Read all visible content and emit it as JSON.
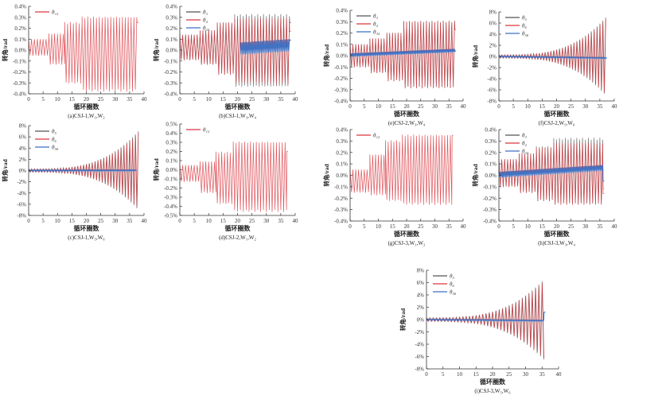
{
  "colors": {
    "black": "#555555",
    "red": "#d9363e",
    "blue": "#3a6fc4",
    "axis": "#333333"
  },
  "chart_data": [
    {
      "id": "a",
      "type": "line",
      "caption": "(a)CSJ-1,W₁,W₂",
      "xlabel": "循环圈数",
      "ylabel": "转角/rad",
      "xlim": [
        0,
        40
      ],
      "ylim": [
        -0.4,
        0.4
      ],
      "xticks": [
        "0",
        "5",
        "10",
        "15",
        "20",
        "25",
        "30",
        "35",
        "40"
      ],
      "yticks": [
        "-0.4%",
        "-0.3%",
        "-0.2%",
        "-0.1%",
        "0.0%",
        "0.1%",
        "0.2%",
        "0.3%",
        "0.4%"
      ],
      "series": [
        {
          "name": "θ₁₂",
          "color": "red",
          "stages": [
            [
              0,
              7,
              0.1,
              -0.05
            ],
            [
              7,
              12.5,
              0.15,
              -0.13
            ],
            [
              12.5,
              18.5,
              0.25,
              -0.3
            ],
            [
              18.5,
              37.5,
              0.3,
              -0.37
            ]
          ],
          "end": 0.25
        }
      ]
    },
    {
      "id": "b",
      "type": "line",
      "caption": "(b)CSJ-1,W₃,W₄",
      "xlabel": "循环圈数",
      "ylabel": "转角/rad",
      "xlim": [
        0,
        40
      ],
      "ylim": [
        -0.4,
        0.4
      ],
      "xticks": [
        "0",
        "5",
        "10",
        "15",
        "20",
        "25",
        "30",
        "35",
        "40"
      ],
      "yticks": [
        "-0.4%",
        "-0.3%",
        "-0.2%",
        "-0.1%",
        "0.0%",
        "0.1%",
        "0.2%",
        "0.3%",
        "0.4%"
      ],
      "series": [
        {
          "name": "θ₃",
          "color": "black",
          "stages": [
            [
              0,
              7,
              0.14,
              -0.09
            ],
            [
              7,
              13,
              0.18,
              -0.13
            ],
            [
              13,
              19,
              0.25,
              -0.22
            ],
            [
              19,
              38,
              0.32,
              -0.33
            ]
          ],
          "end": 0.25
        },
        {
          "name": "θ₄",
          "color": "red",
          "stages": [
            [
              0,
              7,
              0.14,
              -0.09
            ],
            [
              7,
              13,
              0.18,
              -0.13
            ],
            [
              13,
              19,
              0.25,
              -0.22
            ],
            [
              19,
              38,
              0.29,
              -0.3
            ]
          ],
          "end": 0.17
        },
        {
          "name": "θ₃₄",
          "color": "blue",
          "stages": [
            [
              21,
              38,
              0.07,
              -0.04
            ]
          ],
          "trend": 0.03,
          "end": 0.09
        }
      ]
    },
    {
      "id": "e",
      "type": "line",
      "caption": "(e)CSJ-2,W₃,W₄",
      "xlabel": "循环圈数",
      "ylabel": "转角/rad",
      "xlim": [
        0,
        40
      ],
      "ylim": [
        -0.4,
        0.4
      ],
      "xticks": [
        "0",
        "5",
        "10",
        "15",
        "20",
        "25",
        "30",
        "35",
        "40"
      ],
      "yticks": [
        "-0.4%",
        "-0.3%",
        "-0.2%",
        "-0.1%",
        "0.0%",
        "0.1%",
        "0.2%",
        "0.3%",
        "0.4%"
      ],
      "series": [
        {
          "name": "θ₃",
          "color": "black",
          "stages": [
            [
              0,
              7,
              0.1,
              -0.1
            ],
            [
              7,
              13,
              0.15,
              -0.15
            ],
            [
              13,
              19,
              0.2,
              -0.22
            ],
            [
              19,
              37,
              0.3,
              -0.28
            ]
          ],
          "end": 0.23
        },
        {
          "name": "θ₄",
          "color": "red",
          "stages": [
            [
              0,
              7,
              0.1,
              -0.1
            ],
            [
              7,
              13,
              0.15,
              -0.15
            ],
            [
              13,
              19,
              0.2,
              -0.22
            ],
            [
              19,
              37,
              0.3,
              -0.28
            ]
          ],
          "end": 0.23
        },
        {
          "name": "θ₃₄",
          "color": "blue",
          "stages": [
            [
              0,
              37,
              0.02,
              -0.01
            ]
          ],
          "trend": 0.04,
          "end": 0.04
        }
      ]
    },
    {
      "id": "f",
      "type": "line",
      "caption": "(f)CSJ-2,W₅,W₆",
      "xlabel": "循环圈数",
      "ylabel": "转角/rad",
      "xlim": [
        0,
        40
      ],
      "ylim": [
        -8,
        8
      ],
      "xticks": [
        "0",
        "5",
        "10",
        "15",
        "20",
        "25",
        "30",
        "35",
        "40"
      ],
      "yticks": [
        "-8%",
        "-6%",
        "-4%",
        "-2%",
        "0%",
        "2%",
        "4%",
        "6%",
        "8%"
      ],
      "series": [
        {
          "name": "θ₅",
          "color": "black",
          "growth": [
            0.3,
            7
          ],
          "range": [
            0,
            37
          ]
        },
        {
          "name": "θ₆",
          "color": "red",
          "growth": [
            0.3,
            7
          ],
          "range": [
            0,
            37
          ]
        },
        {
          "name": "θ₅₆",
          "color": "blue",
          "stages": [
            [
              0,
              37,
              0.1,
              -0.1
            ]
          ],
          "trend": -0.3,
          "end": -0.3
        }
      ]
    },
    {
      "id": "c",
      "type": "line",
      "caption": "(c)CSJ-1,W₅,W₆",
      "xlabel": "循环圈数",
      "ylabel": "转角/rad",
      "xlim": [
        0,
        40
      ],
      "ylim": [
        -8,
        8
      ],
      "xticks": [
        "0",
        "5",
        "10",
        "15",
        "20",
        "25",
        "30",
        "35",
        "40"
      ],
      "yticks": [
        "-8%",
        "-6%",
        "-4%",
        "-2%",
        "0%",
        "2%",
        "4%",
        "6%",
        "8%"
      ],
      "series": [
        {
          "name": "θ₅",
          "color": "black",
          "growth": [
            0.3,
            7
          ],
          "range": [
            0,
            38
          ]
        },
        {
          "name": "θ₆",
          "color": "red",
          "growth": [
            0.3,
            7
          ],
          "range": [
            0,
            38
          ]
        },
        {
          "name": "θ₅₆",
          "color": "blue",
          "stages": [
            [
              0,
              37,
              0.1,
              -0.1
            ]
          ],
          "trend": 0,
          "end": 0
        }
      ]
    },
    {
      "id": "d",
      "type": "line",
      "caption": "(d)CSJ-2,W₁,W₂",
      "xlabel": "循环圈数",
      "ylabel": "转角/rad",
      "xlim": [
        0,
        40
      ],
      "ylim": [
        -0.5,
        0.5
      ],
      "xticks": [
        "0",
        "5",
        "10",
        "15",
        "20",
        "25",
        "30",
        "35",
        "40"
      ],
      "yticks": [
        "-0.5%",
        "-0.4%",
        "-0.3%",
        "-0.2%",
        "-0.1%",
        "0.0%",
        "0.1%",
        "0.2%",
        "0.3%",
        "0.4%",
        "0.5%"
      ],
      "series": [
        {
          "name": "θ₁₂",
          "color": "red",
          "stages": [
            [
              0,
              7,
              0.05,
              -0.13
            ],
            [
              7,
              12.5,
              0.09,
              -0.25
            ],
            [
              12.5,
              18.5,
              0.19,
              -0.37
            ],
            [
              18.5,
              37,
              0.3,
              -0.45
            ]
          ],
          "end": 0.2
        }
      ]
    },
    {
      "id": "g",
      "type": "line",
      "caption": "(g)CSJ-3,W₁,W₂",
      "xlabel": "循环圈数",
      "ylabel": "转角/rad",
      "xlim": [
        0,
        40
      ],
      "ylim": [
        -0.4,
        0.4
      ],
      "xticks": [
        "0",
        "5",
        "10",
        "15",
        "20",
        "25",
        "30",
        "35",
        "40"
      ],
      "yticks": [
        "-0.4%",
        "-0.3%",
        "-0.2%",
        "-0.1%",
        "0.0%",
        "0.1%",
        "0.2%",
        "0.3%",
        "0.4%"
      ],
      "series": [
        {
          "name": "θ₁₂",
          "color": "red",
          "stages": [
            [
              0,
              7,
              0.05,
              -0.15
            ],
            [
              7,
              12.5,
              0.18,
              -0.17
            ],
            [
              12.5,
              18.5,
              0.3,
              -0.22
            ],
            [
              18.5,
              36,
              0.35,
              -0.25
            ]
          ],
          "end": 0.35
        }
      ]
    },
    {
      "id": "h",
      "type": "line",
      "caption": "(h)CSJ-3,W₃,W₄",
      "xlabel": "循环圈数",
      "ylabel": "转角/rad",
      "xlim": [
        0,
        40
      ],
      "ylim": [
        -0.4,
        0.4
      ],
      "xticks": [
        "0",
        "5",
        "10",
        "15",
        "20",
        "25",
        "30",
        "35",
        "40"
      ],
      "yticks": [
        "-0.4%",
        "-0.3%",
        "-0.2%",
        "-0.1%",
        "0.0%",
        "0.1%",
        "0.2%",
        "0.3%",
        "0.4%"
      ],
      "series": [
        {
          "name": "θ₃",
          "color": "black",
          "stages": [
            [
              0,
              7,
              0.14,
              -0.1
            ],
            [
              7,
              13,
              0.19,
              -0.15
            ],
            [
              13,
              19,
              0.25,
              -0.22
            ],
            [
              19,
              36,
              0.32,
              -0.25
            ]
          ],
          "end": -0.12
        },
        {
          "name": "θ₄",
          "color": "red",
          "stages": [
            [
              0,
              7,
              0.14,
              -0.1
            ],
            [
              7,
              13,
              0.19,
              -0.15
            ],
            [
              13,
              19,
              0.24,
              -0.22
            ],
            [
              19,
              36,
              0.28,
              -0.25
            ]
          ],
          "end": -0.16
        },
        {
          "name": "θ₃₄",
          "color": "blue",
          "stages": [
            [
              0,
              36,
              0.03,
              -0.02
            ]
          ],
          "trend": 0.06,
          "end": -0.05
        }
      ]
    },
    {
      "id": "i",
      "type": "line",
      "caption": "(i)CSJ-3,W₅,W₆",
      "xlabel": "循环圈数",
      "ylabel": "转角/rad",
      "xlim": [
        0,
        40
      ],
      "ylim": [
        -8,
        8
      ],
      "xticks": [
        "0",
        "5",
        "10",
        "15",
        "20",
        "25",
        "30",
        "35",
        "40"
      ],
      "yticks": [
        "-8%",
        "-6%",
        "-4%",
        "-2%",
        "0%",
        "2%",
        "4%",
        "6%",
        "8%"
      ],
      "series": [
        {
          "name": "θ₅",
          "color": "black",
          "growth": [
            0.3,
            6.5
          ],
          "range": [
            0,
            35.5
          ]
        },
        {
          "name": "θ₆",
          "color": "red",
          "growth": [
            0.3,
            6.5
          ],
          "range": [
            0,
            35.5
          ]
        },
        {
          "name": "θ₅₆",
          "color": "blue",
          "stages": [
            [
              0,
              35.5,
              0.1,
              -0.1
            ]
          ],
          "trend": -0.2,
          "end": 1.2
        }
      ]
    }
  ]
}
